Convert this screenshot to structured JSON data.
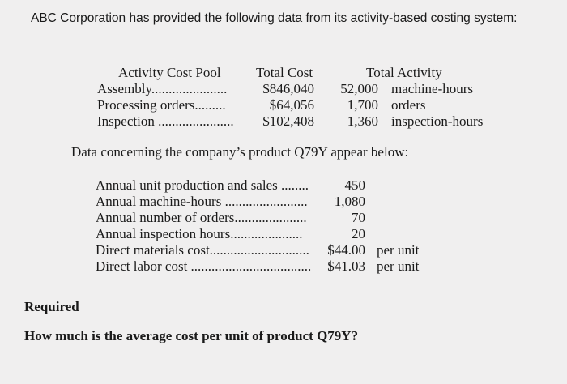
{
  "intro": "ABC Corporation has provided the following data from its activity-based costing system:",
  "pool_table": {
    "headers": {
      "pool": "Activity Cost Pool",
      "cost": "Total Cost",
      "activity": "Total Activity"
    },
    "rows": [
      {
        "pool": "Assembly",
        "dots": "......................",
        "cost": "$846,040",
        "qty": "52,000",
        "unit": "machine-hours"
      },
      {
        "pool": "Processing orders",
        "dots": ".........",
        "cost": "$64,056",
        "qty": "1,700",
        "unit": "orders"
      },
      {
        "pool": "Inspection",
        "dots": "......................",
        "cost": "$102,408",
        "qty": "1,360",
        "unit": "inspection-hours"
      }
    ]
  },
  "product_intro": "Data concerning the company’s product Q79Y appear below:",
  "product_table": {
    "rows": [
      {
        "label": "Annual unit production and sales",
        "dots": "........",
        "value": "450",
        "unit": ""
      },
      {
        "label": "Annual machine-hours",
        "dots": "........................",
        "value": "1,080",
        "unit": ""
      },
      {
        "label": "Annual number of orders",
        "dots": ".....................",
        "value": "70",
        "unit": ""
      },
      {
        "label": "Annual inspection hours",
        "dots": ".....................",
        "value": "20",
        "unit": ""
      },
      {
        "label": "Direct materials cost",
        "dots": ".............................",
        "value": "$44.00",
        "unit": "per unit"
      },
      {
        "label": "Direct labor cost",
        "dots": "...................................",
        "value": "$41.03",
        "unit": "per unit"
      }
    ]
  },
  "required": {
    "heading": "Required",
    "question": "How much is the average cost per unit of product Q79Y?"
  }
}
